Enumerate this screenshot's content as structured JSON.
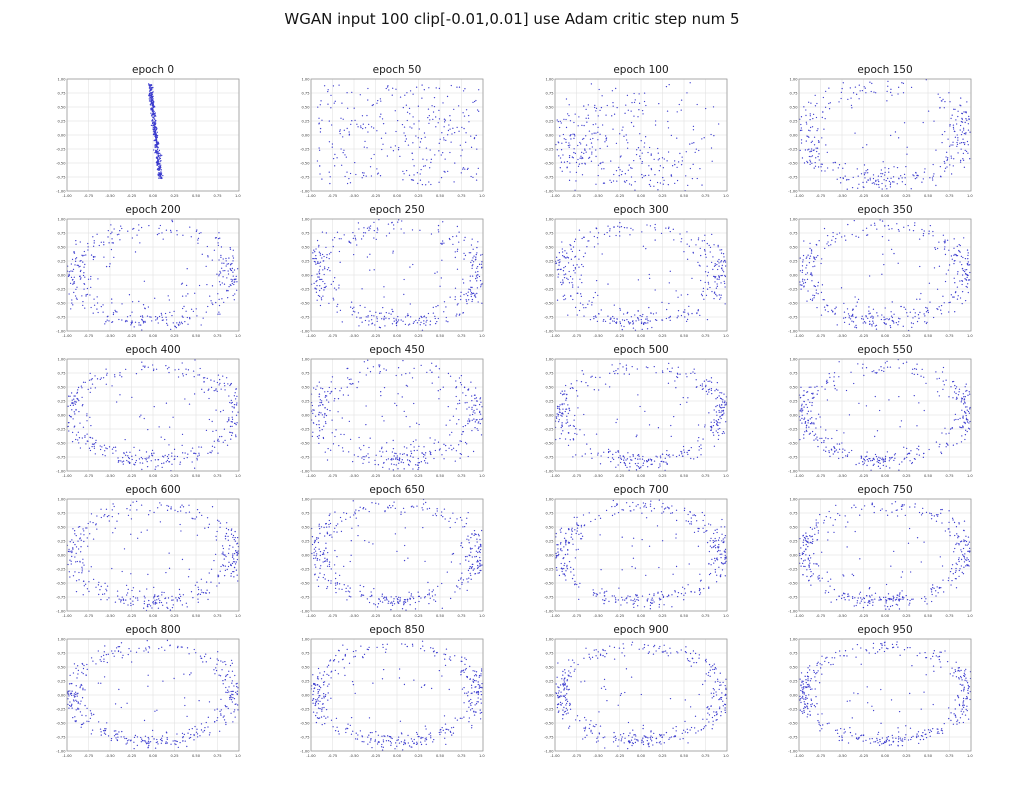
{
  "title": "WGAN input 100 clip[-0.01,0.01] use Adam critic step num 5",
  "axis": {
    "xlim": [
      -1,
      1
    ],
    "ylim": [
      -1,
      1
    ],
    "grid": true,
    "x_ticks": [
      "-1.00",
      "-0.75",
      "-0.50",
      "-0.25",
      "0.00",
      "0.25",
      "0.50",
      "0.75",
      "1.00"
    ],
    "y_ticks": [
      "1.00",
      "0.75",
      "0.50",
      "0.25",
      "0.00",
      "-0.25",
      "-0.50",
      "-0.75",
      "-1.00"
    ]
  },
  "style": {
    "point_color": "#2323c8",
    "grid_color": "#d9d9d9",
    "border_color": "#999999",
    "tick_color": "#333333"
  },
  "chart_data": [
    {
      "type": "scatter",
      "title": "epoch 0",
      "seed": 1,
      "pattern": {
        "kind": "vline",
        "n": 420,
        "x0": 0.03,
        "tilt": -0.07,
        "jitter": 0.013,
        "ymin": -0.78,
        "ymax": 0.93
      }
    },
    {
      "type": "scatter",
      "title": "epoch 50",
      "seed": 2,
      "pattern": {
        "kind": "cloud",
        "n": 300,
        "xr": 0.95,
        "yr": 0.9
      }
    },
    {
      "type": "scatter",
      "title": "epoch 100",
      "seed": 3,
      "pattern": {
        "kind": "ring",
        "n": 330,
        "rx": 0.88,
        "ry": 0.8,
        "rnoise": 0.3,
        "clusterFrac": 0.5,
        "clusters": [
          3.1416,
          3.5,
          -1.6
        ],
        "innerFrac": 0.18
      }
    },
    {
      "type": "scatter",
      "title": "epoch 150",
      "seed": 4,
      "pattern": {
        "kind": "ring",
        "n": 420,
        "rx": 0.97,
        "ry": 0.84,
        "rnoise": 0.13,
        "clusterFrac": 0.45,
        "clusters": [
          3.1416,
          0,
          -1.5708
        ],
        "innerFrac": 0.05
      }
    },
    {
      "type": "scatter",
      "title": "epoch 200",
      "seed": 5,
      "pattern": {
        "kind": "ring",
        "n": 420,
        "rx": 0.97,
        "ry": 0.84,
        "rnoise": 0.12,
        "clusterFrac": 0.45,
        "clusters": [
          3.1416,
          0,
          -1.5708
        ],
        "innerFrac": 0.06
      }
    },
    {
      "type": "scatter",
      "title": "epoch 250",
      "seed": 6,
      "pattern": {
        "kind": "ring",
        "n": 420,
        "rx": 0.97,
        "ry": 0.84,
        "rnoise": 0.11,
        "clusterFrac": 0.45,
        "clusters": [
          3.1416,
          0,
          -1.5708
        ],
        "innerFrac": 0.06
      }
    },
    {
      "type": "scatter",
      "title": "epoch 300",
      "seed": 7,
      "pattern": {
        "kind": "ring",
        "n": 420,
        "rx": 0.96,
        "ry": 0.85,
        "rnoise": 0.11,
        "clusterFrac": 0.45,
        "clusters": [
          3.1416,
          0,
          -1.5708
        ],
        "innerFrac": 0.06
      }
    },
    {
      "type": "scatter",
      "title": "epoch 350",
      "seed": 8,
      "pattern": {
        "kind": "ring",
        "n": 420,
        "rx": 0.97,
        "ry": 0.84,
        "rnoise": 0.11,
        "clusterFrac": 0.45,
        "clusters": [
          3.1416,
          0,
          -1.5708
        ],
        "innerFrac": 0.06
      }
    },
    {
      "type": "scatter",
      "title": "epoch 400",
      "seed": 9,
      "pattern": {
        "kind": "ring",
        "n": 420,
        "rx": 0.97,
        "ry": 0.84,
        "rnoise": 0.1,
        "clusterFrac": 0.45,
        "clusters": [
          3.1416,
          0,
          -1.5708
        ],
        "innerFrac": 0.06
      }
    },
    {
      "type": "scatter",
      "title": "epoch 450",
      "seed": 10,
      "pattern": {
        "kind": "ring",
        "n": 420,
        "rx": 0.96,
        "ry": 0.84,
        "rnoise": 0.13,
        "clusterFrac": 0.45,
        "clusters": [
          3.1416,
          0,
          -1.5708
        ],
        "innerFrac": 0.08
      }
    },
    {
      "type": "scatter",
      "title": "epoch 500",
      "seed": 11,
      "pattern": {
        "kind": "ring",
        "n": 420,
        "rx": 0.96,
        "ry": 0.85,
        "rnoise": 0.09,
        "clusterFrac": 0.45,
        "clusters": [
          3.1416,
          0,
          -1.5708
        ],
        "innerFrac": 0.06
      }
    },
    {
      "type": "scatter",
      "title": "epoch 550",
      "seed": 12,
      "pattern": {
        "kind": "ring",
        "n": 420,
        "rx": 0.97,
        "ry": 0.84,
        "rnoise": 0.09,
        "clusterFrac": 0.45,
        "clusters": [
          3.1416,
          0,
          -1.5708
        ],
        "innerFrac": 0.06
      }
    },
    {
      "type": "scatter",
      "title": "epoch 600",
      "seed": 13,
      "pattern": {
        "kind": "ring",
        "n": 420,
        "rx": 0.97,
        "ry": 0.84,
        "rnoise": 0.1,
        "clusterFrac": 0.45,
        "clusters": [
          3.1416,
          0,
          -1.5708
        ],
        "innerFrac": 0.06
      }
    },
    {
      "type": "scatter",
      "title": "epoch 650",
      "seed": 14,
      "pattern": {
        "kind": "ring",
        "n": 420,
        "rx": 0.96,
        "ry": 0.84,
        "rnoise": 0.09,
        "clusterFrac": 0.45,
        "clusters": [
          3.1416,
          0,
          -1.5708
        ],
        "innerFrac": 0.06
      }
    },
    {
      "type": "scatter",
      "title": "epoch 700",
      "seed": 15,
      "pattern": {
        "kind": "ring",
        "n": 420,
        "rx": 0.95,
        "ry": 0.85,
        "rnoise": 0.09,
        "clusterFrac": 0.45,
        "clusters": [
          3.1416,
          0,
          -1.5708
        ],
        "innerFrac": 0.06
      }
    },
    {
      "type": "scatter",
      "title": "epoch 750",
      "seed": 16,
      "pattern": {
        "kind": "ring",
        "n": 420,
        "rx": 0.96,
        "ry": 0.84,
        "rnoise": 0.08,
        "clusterFrac": 0.45,
        "clusters": [
          3.1416,
          0,
          -1.5708
        ],
        "innerFrac": 0.06
      }
    },
    {
      "type": "scatter",
      "title": "epoch 800",
      "seed": 17,
      "pattern": {
        "kind": "ring",
        "n": 420,
        "rx": 0.97,
        "ry": 0.84,
        "rnoise": 0.08,
        "clusterFrac": 0.45,
        "clusters": [
          3.1416,
          0,
          -1.5708
        ],
        "innerFrac": 0.06
      }
    },
    {
      "type": "scatter",
      "title": "epoch 850",
      "seed": 18,
      "pattern": {
        "kind": "ring",
        "n": 420,
        "rx": 0.96,
        "ry": 0.85,
        "rnoise": 0.08,
        "clusterFrac": 0.45,
        "clusters": [
          3.1416,
          0,
          -1.5708
        ],
        "innerFrac": 0.06
      }
    },
    {
      "type": "scatter",
      "title": "epoch 900",
      "seed": 19,
      "pattern": {
        "kind": "ring",
        "n": 420,
        "rx": 0.96,
        "ry": 0.84,
        "rnoise": 0.08,
        "clusterFrac": 0.45,
        "clusters": [
          3.1416,
          0,
          -1.5708
        ],
        "innerFrac": 0.06
      }
    },
    {
      "type": "scatter",
      "title": "epoch 950",
      "seed": 20,
      "pattern": {
        "kind": "ring",
        "n": 420,
        "rx": 0.96,
        "ry": 0.84,
        "rnoise": 0.07,
        "clusterFrac": 0.45,
        "clusters": [
          3.1416,
          0,
          -1.5708
        ],
        "innerFrac": 0.06
      }
    }
  ]
}
